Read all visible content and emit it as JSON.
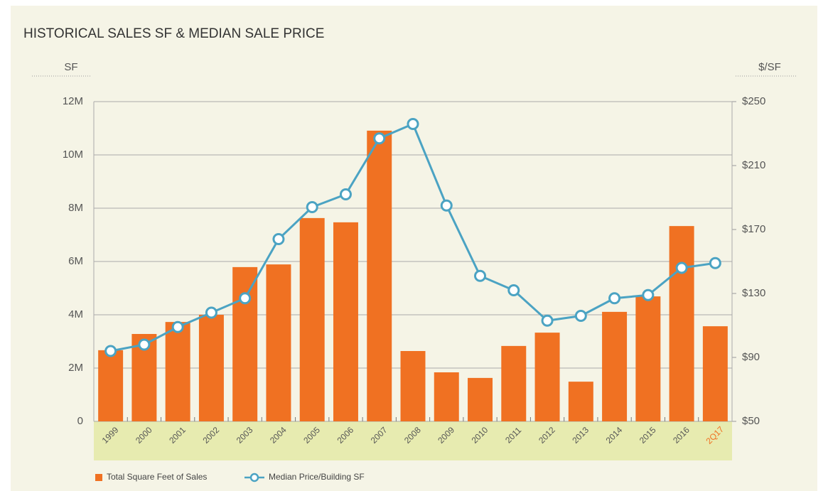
{
  "chart_data": {
    "type": "bar",
    "title": "HISTORICAL SALES SF & MEDIAN SALE PRICE",
    "ylabel": "SF",
    "y2label": "$/SF",
    "categories": [
      "1999",
      "2000",
      "2001",
      "2002",
      "2003",
      "2004",
      "2005",
      "2006",
      "2007",
      "2008",
      "2009",
      "2010",
      "2011",
      "2012",
      "2013",
      "2014",
      "2015",
      "2016",
      "2Q17"
    ],
    "series": [
      {
        "name": "Total Square Feet of Sales",
        "type": "bar",
        "color": "#f07122",
        "values": [
          2670000,
          3280000,
          3730000,
          4000000,
          5790000,
          5890000,
          7630000,
          7470000,
          10910000,
          2640000,
          1840000,
          1630000,
          2830000,
          3330000,
          1490000,
          4110000,
          4690000,
          7330000,
          3570000
        ]
      },
      {
        "name": "Median Price/Building SF",
        "type": "line",
        "axis": "y2",
        "color": "#4ba3c3",
        "values": [
          94,
          98,
          109,
          118,
          127,
          164,
          184,
          192,
          227,
          236,
          185,
          141,
          132,
          113,
          116,
          127,
          129,
          146,
          149
        ]
      }
    ],
    "ylim": [
      0,
      12000000
    ],
    "yticks": [
      0,
      {
        "value": 2000000,
        "label": "2M"
      },
      {
        "value": 4000000,
        "label": "4M"
      },
      {
        "value": 6000000,
        "label": "6M"
      },
      {
        "value": 8000000,
        "label": "8M"
      },
      {
        "value": 10000000,
        "label": "10M"
      },
      {
        "value": 12000000,
        "label": "12M"
      }
    ],
    "y2lim": [
      50,
      250
    ],
    "y2ticks": [
      {
        "value": 50,
        "label": "$50"
      },
      {
        "value": 90,
        "label": "$90"
      },
      {
        "value": 130,
        "label": "$130"
      },
      {
        "value": 170,
        "label": "$170"
      },
      {
        "value": 210,
        "label": "$210"
      },
      {
        "value": 250,
        "label": "$250"
      }
    ],
    "grid": true,
    "legend": "bottom-left"
  }
}
